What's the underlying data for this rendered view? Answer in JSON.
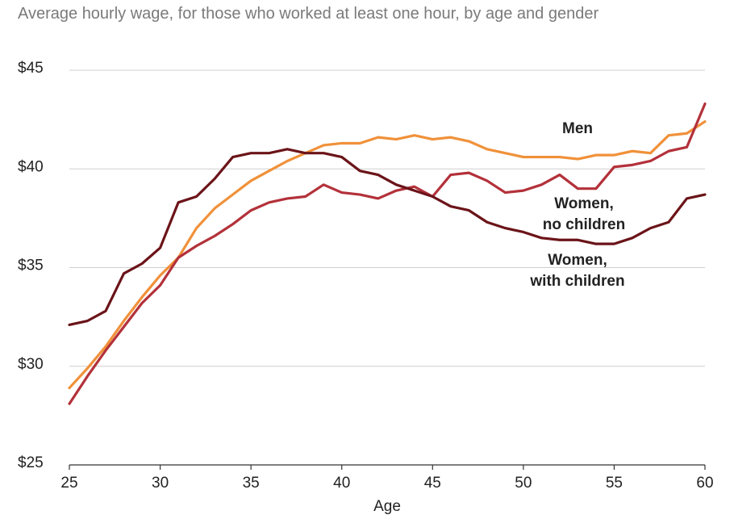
{
  "chart_data": {
    "type": "line",
    "title": "Average hourly wage, for those who worked at least one hour, by age and gender",
    "x_label": "Age",
    "x": [
      25,
      26,
      27,
      28,
      29,
      30,
      31,
      32,
      33,
      34,
      35,
      36,
      37,
      38,
      39,
      40,
      41,
      42,
      43,
      44,
      45,
      46,
      47,
      48,
      49,
      50,
      51,
      52,
      53,
      54,
      55,
      56,
      57,
      58,
      59,
      60
    ],
    "xlim": [
      25,
      60
    ],
    "xticks": [
      25,
      30,
      35,
      40,
      45,
      50,
      55,
      60
    ],
    "ylim": [
      25,
      45
    ],
    "yticks": [
      {
        "value": 25,
        "label": "$25"
      },
      {
        "value": 30,
        "label": "$30"
      },
      {
        "value": 35,
        "label": "$35"
      },
      {
        "value": 40,
        "label": "$40"
      },
      {
        "value": 45,
        "label": "$45"
      }
    ],
    "grid": true,
    "series": [
      {
        "name": "Men",
        "color": "#f0913a",
        "values": [
          28.9,
          29.9,
          31.0,
          32.3,
          33.5,
          34.6,
          35.5,
          37.0,
          38.0,
          38.7,
          39.4,
          39.9,
          40.4,
          40.8,
          41.2,
          41.3,
          41.3,
          41.6,
          41.5,
          41.7,
          41.5,
          41.6,
          41.4,
          41.0,
          40.8,
          40.6,
          40.6,
          40.6,
          40.5,
          40.7,
          40.7,
          40.9,
          40.8,
          41.7,
          41.8,
          42.4
        ]
      },
      {
        "name": "Women, no children",
        "color": "#b3313a",
        "values": [
          28.1,
          29.5,
          30.8,
          32.0,
          33.2,
          34.1,
          35.5,
          36.1,
          36.6,
          37.2,
          37.9,
          38.3,
          38.5,
          38.6,
          39.2,
          38.8,
          38.7,
          38.5,
          38.9,
          39.1,
          38.6,
          39.7,
          39.8,
          39.4,
          38.8,
          38.9,
          39.2,
          39.7,
          39.0,
          39.0,
          40.1,
          40.2,
          40.4,
          40.9,
          41.1,
          43.3
        ]
      },
      {
        "name": "Women, with children",
        "color": "#6b1419",
        "values": [
          32.1,
          32.3,
          32.8,
          34.7,
          35.2,
          36.0,
          38.3,
          38.6,
          39.5,
          40.6,
          40.8,
          40.8,
          41.0,
          40.8,
          40.8,
          40.6,
          39.9,
          39.7,
          39.2,
          38.9,
          38.6,
          38.1,
          37.9,
          37.3,
          37.0,
          36.8,
          36.5,
          36.4,
          36.4,
          36.2,
          36.2,
          36.5,
          37.0,
          37.3,
          38.5,
          38.7
        ]
      }
    ]
  }
}
